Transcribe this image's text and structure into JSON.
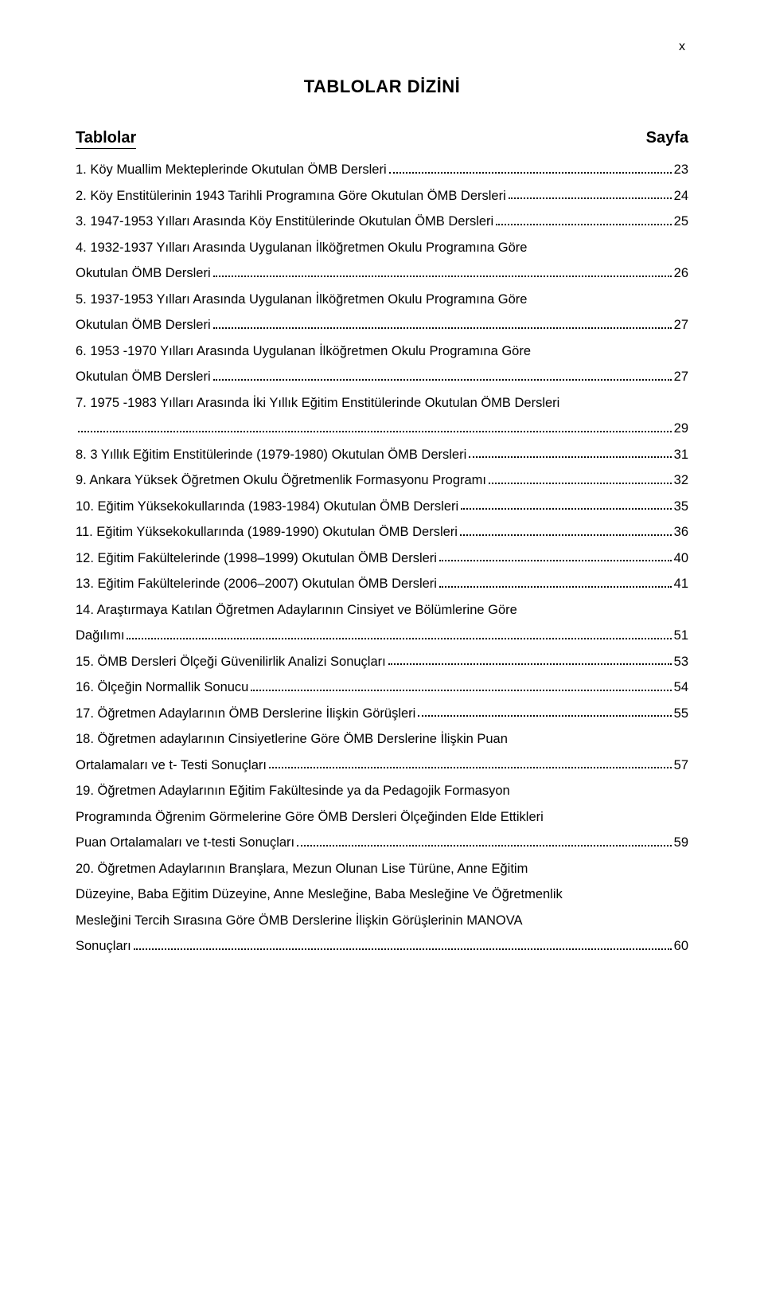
{
  "pageNumber": "x",
  "title": "TABLOLAR DİZİNİ",
  "headerLeft": "Tablolar",
  "headerRight": "Sayfa",
  "colors": {
    "background": "#ffffff",
    "text": "#000000",
    "dots": "#000000"
  },
  "typography": {
    "title_fontsize": 22,
    "header_fontsize": 20,
    "body_fontsize": 16.5,
    "font_family": "Arial"
  },
  "entries": [
    {
      "text": "1. Köy Muallim Mekteplerinde Okutulan ÖMB Dersleri",
      "page": "23"
    },
    {
      "text": "2. Köy Enstitülerinin 1943 Tarihli Programına Göre Okutulan ÖMB Dersleri",
      "page": "24"
    },
    {
      "text": "3. 1947-1953 Yılları Arasında Köy Enstitülerinde Okutulan ÖMB Dersleri",
      "page": "25"
    },
    {
      "first": "4. 1932-1937 Yılları Arasında Uygulanan İlköğretmen Okulu  Programına Göre",
      "cont": "Okutulan ÖMB Dersleri",
      "page": "26"
    },
    {
      "first": "5. 1937-1953 Yılları Arasında Uygulanan İlköğretmen Okulu Programına Göre",
      "cont": "Okutulan ÖMB Dersleri",
      "page": "27"
    },
    {
      "first": "6. 1953 -1970 Yılları Arasında Uygulanan İlköğretmen Okulu Programına Göre",
      "cont": "Okutulan ÖMB Dersleri",
      "page": "27"
    },
    {
      "first": "7. 1975 -1983 Yılları Arasında İki Yıllık Eğitim Enstitülerinde Okutulan ÖMB Dersleri",
      "cont": "",
      "page": "29"
    },
    {
      "text": "8. 3 Yıllık Eğitim Enstitülerinde (1979-1980) Okutulan ÖMB Dersleri",
      "page": "31"
    },
    {
      "text": "9. Ankara Yüksek Öğretmen Okulu Öğretmenlik Formasyonu Programı",
      "page": "32"
    },
    {
      "text": "10. Eğitim Yüksekokullarında (1983-1984) Okutulan ÖMB Dersleri",
      "page": "35"
    },
    {
      "text": "11. Eğitim Yüksekokullarında (1989-1990) Okutulan ÖMB Dersleri",
      "page": "36"
    },
    {
      "text": "12. Eğitim Fakültelerinde (1998–1999) Okutulan ÖMB Dersleri",
      "page": "40"
    },
    {
      "text": "13. Eğitim Fakültelerinde (2006–2007) Okutulan ÖMB Dersleri",
      "page": "41"
    },
    {
      "first": "14. Araştırmaya Katılan Öğretmen Adaylarının Cinsiyet ve Bölümlerine Göre",
      "cont": "Dağılımı",
      "page": "51"
    },
    {
      "text": "15. ÖMB Dersleri Ölçeği Güvenilirlik Analizi Sonuçları",
      "page": "53"
    },
    {
      "text": "16. Ölçeğin Normallik Sonucu",
      "page": "54"
    },
    {
      "text": "17. Öğretmen Adaylarının ÖMB Derslerine İlişkin Görüşleri",
      "page": "55"
    },
    {
      "first": "18. Öğretmen adaylarının Cinsiyetlerine Göre ÖMB Derslerine İlişkin Puan",
      "cont": "Ortalamaları ve t- Testi Sonuçları",
      "page": "57"
    },
    {
      "lines": [
        "19. Öğretmen Adaylarının Eğitim Fakültesinde ya da Pedagojik Formasyon",
        "Programında Öğrenim Görmelerine Göre ÖMB Dersleri Ölçeğinden Elde Ettikleri"
      ],
      "cont": "Puan Ortalamaları ve t-testi Sonuçları",
      "page": "59"
    },
    {
      "lines": [
        "20. Öğretmen Adaylarının Branşlara, Mezun Olunan Lise Türüne, Anne Eğitim",
        "Düzeyine, Baba Eğitim Düzeyine, Anne Mesleğine, Baba Mesleğine Ve Öğretmenlik",
        "Mesleğini Tercih Sırasına Göre ÖMB Derslerine İlişkin Görüşlerinin MANOVA"
      ],
      "cont": "Sonuçları",
      "page": "60"
    }
  ]
}
